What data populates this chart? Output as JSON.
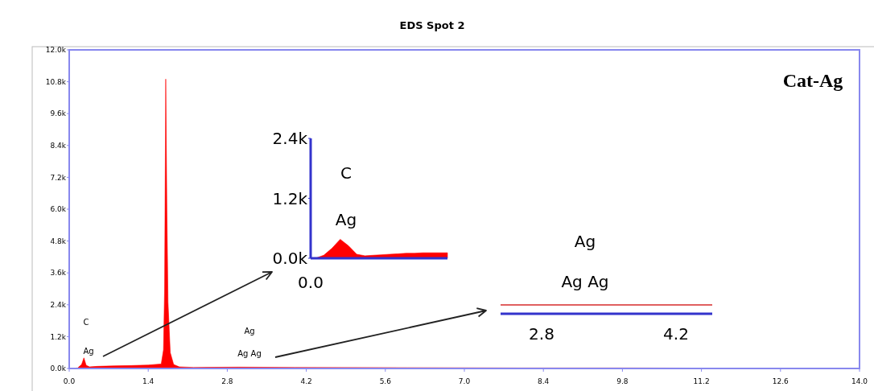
{
  "chart_data": [
    {
      "type": "area",
      "title": "EDS Spot 2",
      "annotations": [
        "Cat-Ag",
        "C",
        "Ag",
        "Ag",
        "Ag Ag"
      ],
      "series": [
        {
          "color": "#ff0000",
          "x": [
            0,
            0.15,
            0.22,
            0.26,
            0.3,
            0.36,
            0.5,
            0.8,
            1.1,
            1.4,
            1.63,
            1.67,
            1.69,
            1.71,
            1.73,
            1.75,
            1.79,
            1.85,
            1.95,
            2.2,
            3.0,
            4.0,
            6.0,
            8.0,
            10,
            12,
            14
          ],
          "values": [
            0,
            20,
            150,
            400,
            120,
            60,
            80,
            100,
            110,
            130,
            170,
            700,
            3000,
            10900,
            6000,
            2500,
            600,
            150,
            60,
            40,
            50,
            40,
            30,
            20,
            20,
            10,
            10
          ]
        }
      ],
      "xlim": [
        0,
        14
      ],
      "xticks": [
        {
          "value": 0,
          "label": "0.0"
        },
        1.4,
        2.8,
        4.2,
        5.6,
        {
          "value": 7,
          "label": "7.0"
        },
        8.4,
        9.8,
        11.2,
        12.6,
        {
          "value": 14,
          "label": "14.0"
        }
      ],
      "ylim": [
        0,
        12000
      ],
      "yticks": [
        {
          "value": 0,
          "label": "0.0k"
        },
        {
          "value": 1200,
          "label": "1.2k"
        },
        {
          "value": 2400,
          "label": "2.4k"
        },
        {
          "value": 3600,
          "label": "3.6k"
        },
        {
          "value": 4800,
          "label": "4.8k"
        },
        {
          "value": 6000,
          "label": "6.0k"
        },
        {
          "value": 7200,
          "label": "7.2k"
        },
        {
          "value": 8400,
          "label": "8.4k"
        },
        {
          "value": 9600,
          "label": "9.6k"
        },
        {
          "value": 10800,
          "label": "10.8k"
        },
        {
          "value": 12000,
          "label": "12.0k"
        }
      ]
    },
    {
      "type": "area",
      "annotations": [
        "C",
        "Ag",
        "0.0"
      ],
      "categories": [
        null,
        null,
        null,
        null,
        null,
        null,
        null,
        null,
        null,
        null,
        null,
        null,
        null,
        null,
        null,
        null,
        null
      ],
      "series": [
        {
          "color": "#ff0000",
          "values": [
            0,
            60,
            200,
            380,
            250,
            80,
            50,
            60,
            70,
            80,
            90,
            100,
            100,
            110,
            110,
            110,
            110
          ]
        }
      ],
      "ylim": [
        0,
        2400
      ],
      "yticks": [
        {
          "value": 0,
          "label": "0.0k"
        },
        {
          "value": 1200,
          "label": "1.2k"
        },
        {
          "value": 2400,
          "label": "2.4k"
        }
      ]
    },
    {
      "type": "other",
      "annotations": [
        "Ag",
        "Ag Ag",
        "2.8",
        "4.2"
      ]
    }
  ]
}
